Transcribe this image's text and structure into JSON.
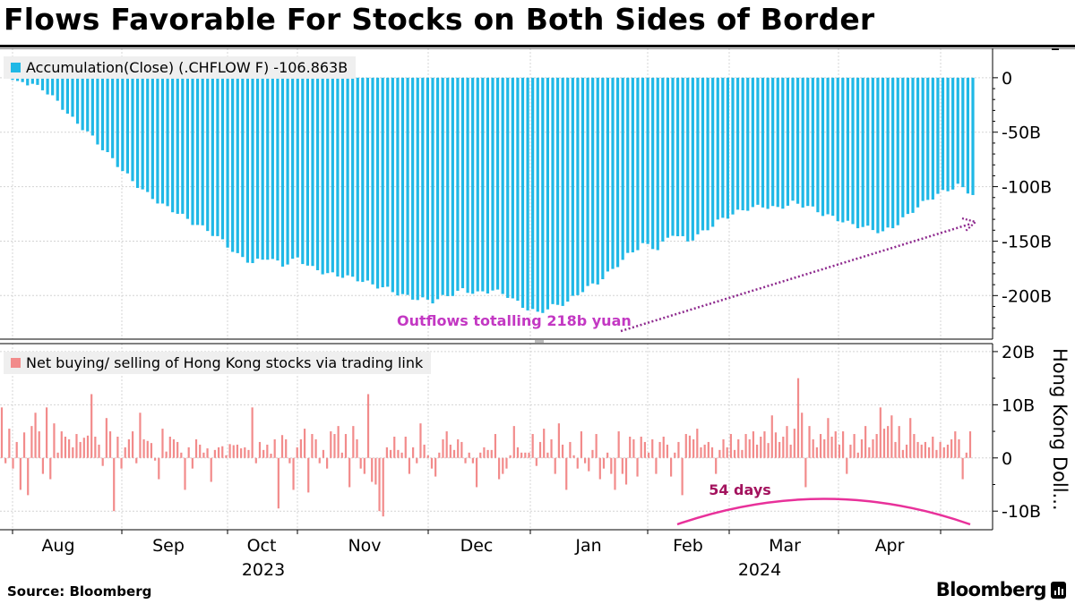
{
  "title": "Flows Favorable For Stocks on Both Sides of Border",
  "source": "Source: Bloomberg",
  "brand": "Bloomberg",
  "chart_data": [
    {
      "type": "bar",
      "name": "top-panel",
      "legend": "Accumulation(Close) (.CHFLOW F) -106.863B",
      "color": "#1fb8e6",
      "ylim": [
        -240,
        27
      ],
      "yticks": [
        0,
        -50,
        -100,
        -150,
        -200
      ],
      "ytick_labels": [
        "0",
        "-50B",
        "-100B",
        "-150B",
        "-200B"
      ],
      "annotation": "Outflows totalling 218b yuan",
      "annotation_color": "#c338c3",
      "arrow_color": "#8e2a8e",
      "anchors": [
        [
          0,
          -2
        ],
        [
          3,
          -5
        ],
        [
          6,
          -10
        ],
        [
          9,
          -22
        ],
        [
          12,
          -38
        ],
        [
          15,
          -50
        ],
        [
          18,
          -65
        ],
        [
          21,
          -80
        ],
        [
          24,
          -95
        ],
        [
          27,
          -107
        ],
        [
          30,
          -117
        ],
        [
          33,
          -124
        ],
        [
          36,
          -133
        ],
        [
          39,
          -140
        ],
        [
          42,
          -150
        ],
        [
          45,
          -163
        ],
        [
          48,
          -170
        ],
        [
          51,
          -165
        ],
        [
          54,
          -172
        ],
        [
          57,
          -166
        ],
        [
          60,
          -175
        ],
        [
          63,
          -180
        ],
        [
          66,
          -182
        ],
        [
          69,
          -185
        ],
        [
          72,
          -190
        ],
        [
          75,
          -194
        ],
        [
          78,
          -200
        ],
        [
          81,
          -203
        ],
        [
          84,
          -205
        ],
        [
          87,
          -200
        ],
        [
          90,
          -195
        ],
        [
          93,
          -198
        ],
        [
          96,
          -195
        ],
        [
          99,
          -200
        ],
        [
          102,
          -210
        ],
        [
          105,
          -216
        ],
        [
          108,
          -210
        ],
        [
          111,
          -206
        ],
        [
          114,
          -195
        ],
        [
          117,
          -188
        ],
        [
          120,
          -176
        ],
        [
          123,
          -163
        ],
        [
          126,
          -153
        ],
        [
          129,
          -157
        ],
        [
          132,
          -143
        ],
        [
          135,
          -150
        ],
        [
          138,
          -142
        ],
        [
          141,
          -132
        ],
        [
          144,
          -125
        ],
        [
          147,
          -120
        ],
        [
          150,
          -118
        ],
        [
          153,
          -120
        ],
        [
          156,
          -115
        ],
        [
          159,
          -118
        ],
        [
          162,
          -125
        ],
        [
          165,
          -130
        ],
        [
          168,
          -135
        ],
        [
          171,
          -138
        ],
        [
          174,
          -142
        ],
        [
          177,
          -134
        ],
        [
          180,
          -122
        ],
        [
          183,
          -112
        ],
        [
          186,
          -105
        ],
        [
          189,
          -99
        ],
        [
          192,
          -107
        ]
      ]
    },
    {
      "type": "bar",
      "name": "bottom-panel",
      "legend": "Net buying/ selling of Hong Kong stocks via trading link",
      "color": "#f28b8b",
      "ylim": [
        -13.5,
        21.5
      ],
      "yticks": [
        20,
        10,
        0,
        -10
      ],
      "ytick_labels": [
        "20B",
        "10B",
        "0",
        "-10B"
      ],
      "ylabel": "Hong Kong Doll...",
      "annotation": "54 days",
      "annotation_color": "#a3135e",
      "arc_color": "#e8319a",
      "bars": [
        9.5,
        -1,
        5.5,
        -2,
        3,
        -6,
        4.8,
        -7,
        6,
        8.5,
        5,
        -3,
        9.5,
        -4,
        6.5,
        1,
        5,
        4,
        3.5,
        2,
        4.5,
        3,
        3.8,
        4.2,
        12,
        4,
        2.5,
        -1.5,
        7.5,
        5,
        -10,
        4,
        -2,
        2,
        3.5,
        5,
        -1,
        8.5,
        3.5,
        3.2,
        2.8,
        -0.5,
        -4,
        5.5,
        1.2,
        4,
        3.5,
        3,
        1,
        -6,
        2,
        -2,
        3.5,
        2.5,
        1,
        1.8,
        -4.5,
        1.5,
        2,
        2.2,
        0.5,
        2.6,
        2.4,
        2.5,
        1.8,
        2,
        1.5,
        9.5,
        -1,
        3,
        1.5,
        2.5,
        0.8,
        3.5,
        -9.5,
        4.3,
        3.5,
        -1,
        -6,
        2,
        3.5,
        5.5,
        -6.5,
        4.5,
        3.5,
        -1,
        1.5,
        -2,
        5,
        4.5,
        6,
        1,
        4.5,
        -5.5,
        6,
        3.5,
        -2,
        -3,
        12,
        -4.5,
        -5,
        -10,
        -11,
        2,
        1.5,
        4,
        1.5,
        1,
        4,
        -3,
        2,
        -1,
        6.5,
        2.5,
        0.5,
        -2,
        -3.5,
        1,
        3.5,
        5,
        2.5,
        1.5,
        3.5,
        3,
        -1,
        1,
        -1,
        -5.5,
        1,
        2,
        1.5,
        1.5,
        4.5,
        -4,
        -3,
        -2,
        0.5,
        6,
        2,
        1,
        1,
        1,
        4.5,
        -1.5,
        3,
        5.5,
        1,
        3.5,
        -3,
        6.5,
        2.5,
        -6,
        3,
        0.5,
        -2,
        5,
        -1,
        -2.5,
        1.5,
        4.5,
        -4,
        -2,
        1,
        -3,
        -6,
        5,
        -3,
        -5,
        4,
        3.5,
        -3.5,
        4,
        3,
        1,
        3.5,
        -3,
        3,
        4,
        2.5,
        -3.5,
        1,
        3,
        -7,
        4.5,
        4.2,
        3.5,
        5.5,
        2,
        2.5,
        3,
        2,
        -3,
        1.5,
        3.5,
        2,
        4.5,
        1.5,
        3.5,
        1.5,
        4.5,
        3.5,
        5,
        2.5,
        4,
        5,
        2.8,
        8,
        4.8,
        3,
        4,
        6,
        2.5,
        5.5,
        15,
        8.5,
        -5.5,
        6,
        3.5,
        2,
        4.5,
        3.5,
        7.5,
        4,
        5,
        2.5,
        5,
        -3,
        2.5,
        4.5,
        1,
        3.5,
        6,
        2,
        3.5,
        4.5,
        9.5,
        5.5,
        6,
        8,
        3,
        6,
        1.5,
        2.5,
        7.5,
        4.5,
        3,
        2.5,
        3,
        2,
        4,
        1.5,
        3,
        2,
        2.5,
        3.5,
        5,
        3.5,
        -4,
        1,
        5
      ]
    }
  ],
  "x_axis": {
    "months": [
      "Aug",
      "Sep",
      "Oct",
      "Nov",
      "Dec",
      "Jan",
      "Feb",
      "Mar",
      "Apr"
    ],
    "years": [
      "2023",
      "2024"
    ]
  }
}
